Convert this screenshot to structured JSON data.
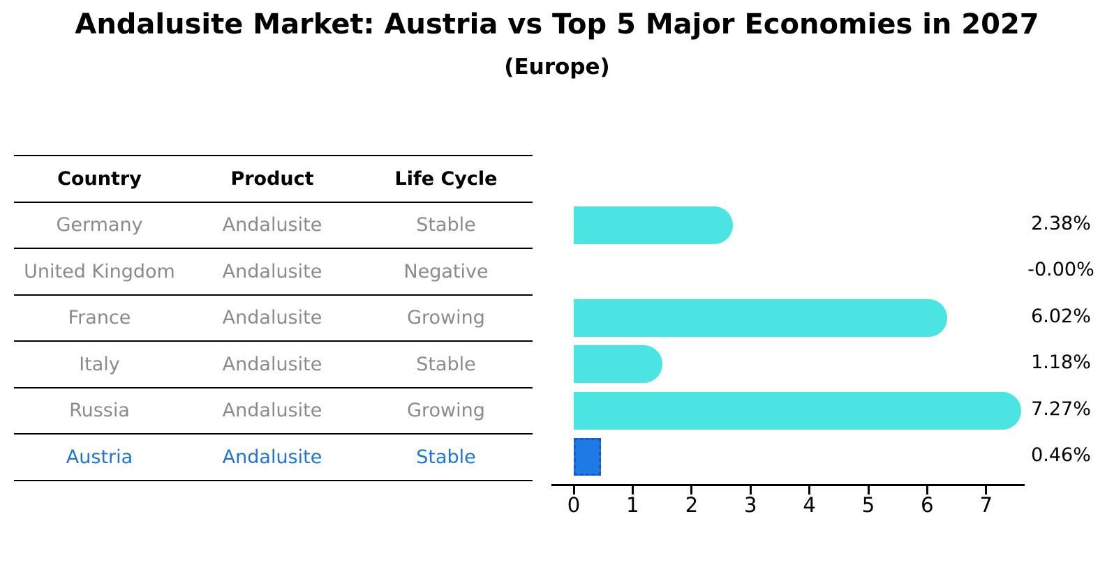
{
  "title": "Andalusite Market: Austria vs Top 5 Major Economies in 2027",
  "subtitle": "(Europe)",
  "table": {
    "headers": [
      "Country",
      "Product",
      "Life Cycle"
    ],
    "rows": [
      {
        "country": "Germany",
        "product": "Andalusite",
        "life_cycle": "Stable",
        "highlight": false
      },
      {
        "country": "United Kingdom",
        "product": "Andalusite",
        "life_cycle": "Negative",
        "highlight": false
      },
      {
        "country": "France",
        "product": "Andalusite",
        "life_cycle": "Growing",
        "highlight": false
      },
      {
        "country": "Italy",
        "product": "Andalusite",
        "life_cycle": "Stable",
        "highlight": false
      },
      {
        "country": "Russia",
        "product": "Andalusite",
        "life_cycle": "Growing",
        "highlight": false
      },
      {
        "country": "Austria",
        "product": "Andalusite",
        "life_cycle": "Stable",
        "highlight": true
      }
    ]
  },
  "chart_data": {
    "type": "bar",
    "orientation": "horizontal",
    "title": "Andalusite Market: Austria vs Top 5 Major Economies in 2027",
    "subtitle": "(Europe)",
    "categories": [
      "Germany",
      "United Kingdom",
      "France",
      "Italy",
      "Russia",
      "Austria"
    ],
    "values": [
      2.38,
      -0.0,
      6.02,
      1.18,
      7.27,
      0.46
    ],
    "value_labels": [
      "2.38%",
      "-0.00%",
      "6.02%",
      "1.18%",
      "7.27%",
      "0.46%"
    ],
    "unit": "%",
    "xlabel": "",
    "ylabel": "",
    "xlim": [
      0,
      7.65
    ],
    "xticks": [
      0,
      1,
      2,
      3,
      4,
      5,
      6,
      7
    ],
    "grid": false,
    "legend": "none",
    "highlight_index": 5,
    "bar_color": "#4ae5e2",
    "highlight_bar_color": "#1e7be5",
    "highlight_border_color": "#1b59c9",
    "highlight_text_color": "#1f76d2",
    "row_text_color": "#8b8b8b",
    "axis_color": "#000000"
  }
}
